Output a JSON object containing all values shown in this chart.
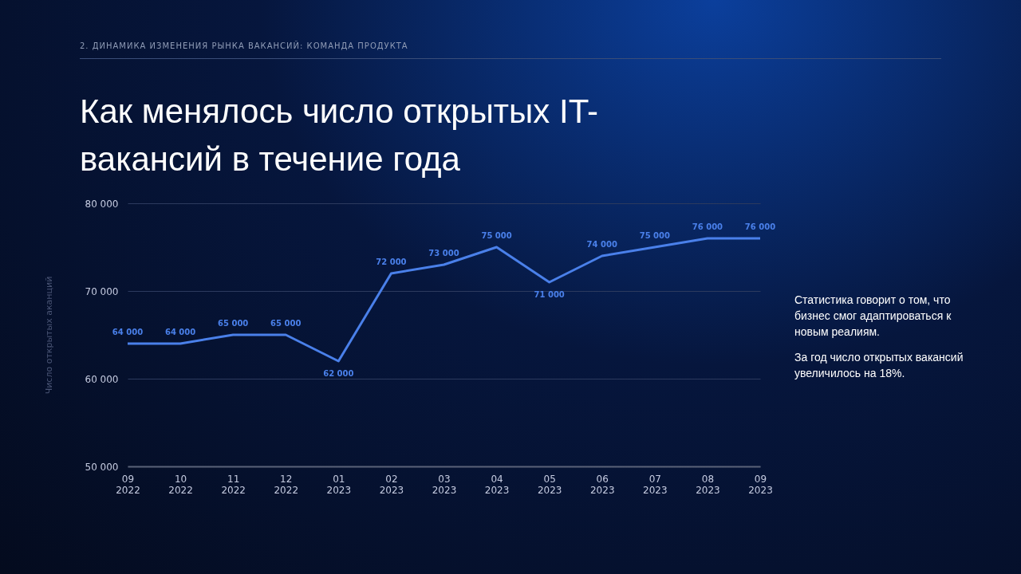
{
  "chart_data": {
    "type": "line",
    "title": "Как менялось число открытых IT-вакансий в течение года",
    "subtitle": "2. ДИНАМИКА ИЗМЕНЕНИЯ РЫНКА ВАКАНСИЙ: КОМАНДА ПРОДУКТА",
    "ylabel": "Число открытых аканций",
    "categories": [
      "09\n2022",
      "10\n2022",
      "11\n2022",
      "12\n2022",
      "01\n2023",
      "02\n2023",
      "03\n2023",
      "04\n2023",
      "05\n2023",
      "06\n2023",
      "07\n2023",
      "08\n2023",
      "09\n2023"
    ],
    "series": [
      {
        "color": "#4a80ea",
        "values": [
          64000,
          64000,
          65000,
          65000,
          62000,
          72000,
          73000,
          75000,
          71000,
          74000,
          75000,
          76000,
          76000
        ]
      }
    ],
    "ylim": [
      50000,
      80000
    ],
    "yticks": [
      {
        "value": 50000,
        "label": "50 000"
      },
      {
        "value": 60000,
        "label": "60 000"
      },
      {
        "value": 70000,
        "label": "70 000"
      },
      {
        "value": 80000,
        "label": "80 000"
      }
    ],
    "grid": "y",
    "data_labels": true,
    "marker": "none",
    "line_style": "solid",
    "annotations": [
      "Статистика говорит о том, что бизнес смог адаптироваться к новым реалиям.",
      "За год число открытых вакансий увеличилось на 18%."
    ]
  }
}
